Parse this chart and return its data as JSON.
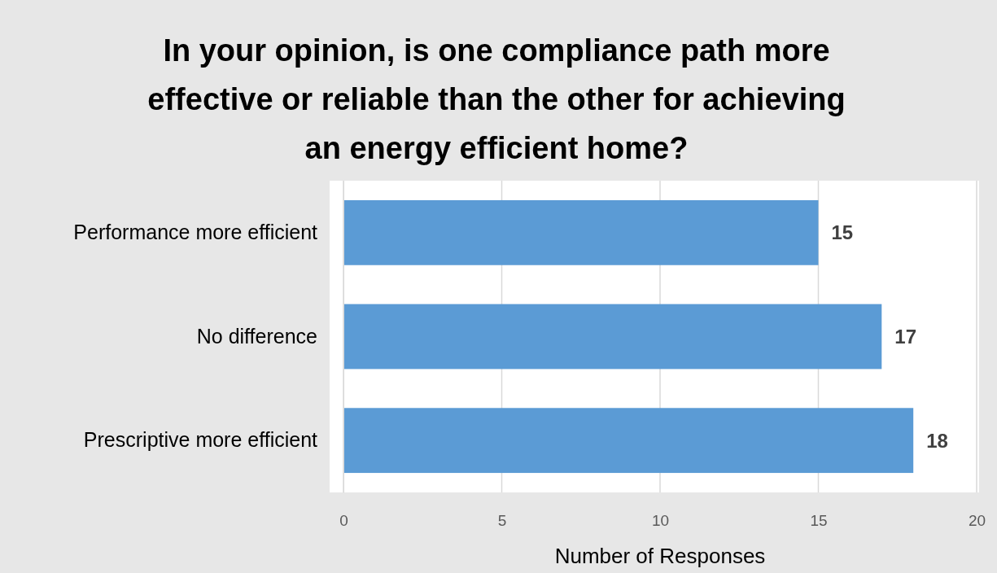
{
  "chart_data": {
    "type": "bar",
    "orientation": "horizontal",
    "title": "In your opinion, is one compliance path more effective or reliable than the other for achieving an energy efficient home?",
    "categories": [
      "Performance more efficient",
      "No difference",
      "Prescriptive more efficient"
    ],
    "values": [
      15,
      17,
      18
    ],
    "color": "#5b9bd5",
    "xlabel": "Number of Responses",
    "xlim": [
      0,
      20
    ],
    "xticks": [
      0,
      5,
      10,
      15,
      20
    ],
    "grid": "x",
    "data_labels": true
  }
}
